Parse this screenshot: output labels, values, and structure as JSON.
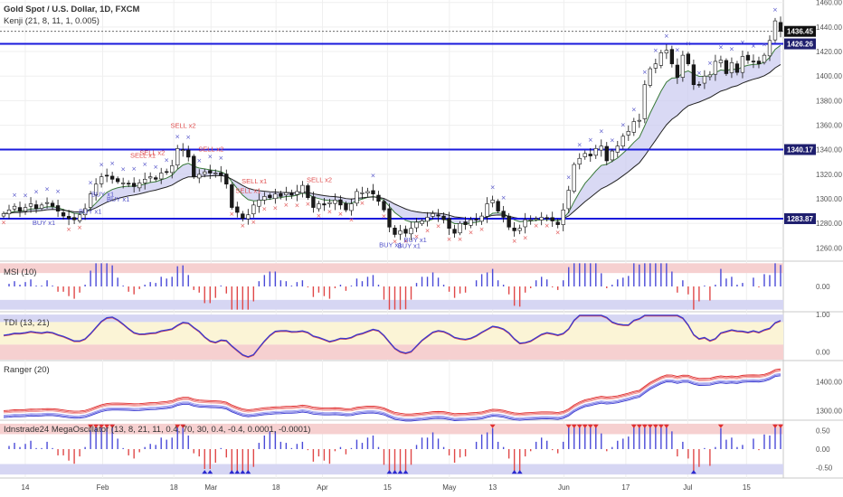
{
  "header": {
    "symbol_line": "Gold Spot / U.S. Dollar, 1D, FXCM",
    "indicator_line": "Kenji (21, 8, 11, 1, 0.005)"
  },
  "panes": {
    "msi_label": "MSI (10)",
    "tdi_label": "TDI (13, 21)",
    "ranger_label": "Ranger (20)",
    "mega_label": "Idnstrade24 MegaOscillator (13, 8, 21, 11, 0.4, 70, 30, 0.4, -0.4, 0.0001, -0.0001)"
  },
  "colors": {
    "level_line": "#1a1adc",
    "up_candle": "#ffffff",
    "down_candle": "#1a1a1a",
    "buy": "#5050c8",
    "sell": "#e05050",
    "band_fill": "#c9c9ef",
    "red_zone": "#f6d0d0",
    "blue_zone": "#d6d6f3",
    "tdi_yellow": "#fbf4d6"
  },
  "chart_data": [
    {
      "id": "price",
      "type": "candlestick",
      "title": "Gold Spot / U.S. Dollar, 1D, FXCM",
      "ylim": [
        1250,
        1462
      ],
      "y_ticks": [
        1260,
        1280,
        1300,
        1320,
        1340,
        1360,
        1380,
        1400,
        1420,
        1440,
        1460
      ],
      "x_tick_labels": [
        "14",
        "Feb",
        "18",
        "Mar",
        "18",
        "Apr",
        "15",
        "May",
        "13",
        "Jun",
        "17",
        "Jul",
        "15"
      ],
      "horizontal_levels": [
        {
          "value": 1426.26,
          "label": "1426.26"
        },
        {
          "value": 1340.17,
          "label": "1340.17"
        },
        {
          "value": 1283.87,
          "label": "1283.87"
        }
      ],
      "last_price": {
        "value": 1436.45,
        "label": "1436.45"
      },
      "close": [
        1288,
        1291,
        1294,
        1290,
        1293,
        1296,
        1292,
        1295,
        1297,
        1294,
        1290,
        1286,
        1284,
        1283,
        1287,
        1292,
        1304,
        1312,
        1318,
        1319,
        1316,
        1314,
        1313,
        1312,
        1310,
        1313,
        1316,
        1318,
        1316,
        1321,
        1322,
        1327,
        1341,
        1340,
        1334,
        1318,
        1320,
        1322,
        1321,
        1321,
        1319,
        1312,
        1293,
        1289,
        1284,
        1287,
        1295,
        1299,
        1302,
        1301,
        1304,
        1302,
        1305,
        1303,
        1306,
        1311,
        1301,
        1293,
        1296,
        1295,
        1297,
        1299,
        1295,
        1291,
        1296,
        1306,
        1305,
        1306,
        1304,
        1298,
        1291,
        1277,
        1271,
        1274,
        1272,
        1276,
        1281,
        1282,
        1285,
        1288,
        1286,
        1283,
        1276,
        1272,
        1280,
        1279,
        1283,
        1283,
        1286,
        1296,
        1299,
        1290,
        1285,
        1277,
        1274,
        1276,
        1283,
        1283,
        1284,
        1285,
        1284,
        1282,
        1279,
        1291,
        1307,
        1328,
        1333,
        1337,
        1335,
        1341,
        1343,
        1331,
        1339,
        1343,
        1351,
        1355,
        1363,
        1364,
        1393,
        1406,
        1410,
        1419,
        1421,
        1410,
        1399,
        1417,
        1410,
        1393,
        1393,
        1400,
        1401,
        1412,
        1413,
        1402,
        1411,
        1403,
        1416,
        1413,
        1412,
        1410,
        1417,
        1429,
        1445,
        1436.45
      ],
      "open_offset_note": "",
      "annotations": [
        {
          "index": 13,
          "text": "BUY x1",
          "kind": "buy"
        },
        {
          "index": 28,
          "text": "BUY x1",
          "kind": "buy"
        },
        {
          "index": 32,
          "text": "BUY x1",
          "kind": "buy"
        },
        {
          "index": 37,
          "text": "BUY x1",
          "kind": "buy"
        },
        {
          "index": 45,
          "text": "SELL x1",
          "kind": "sell"
        },
        {
          "index": 48,
          "text": "SELL x2",
          "kind": "sell"
        },
        {
          "index": 58,
          "text": "SELL x2",
          "kind": "sell"
        },
        {
          "index": 67,
          "text": "SELL x2",
          "kind": "sell"
        },
        {
          "index": 79,
          "text": "SELL x1",
          "kind": "sell"
        },
        {
          "index": 81,
          "text": "SELL x1",
          "kind": "sell"
        },
        {
          "index": 102,
          "text": "SELL x2",
          "kind": "sell"
        },
        {
          "index": 125,
          "text": "BUY x1",
          "kind": "buy"
        },
        {
          "index": 131,
          "text": "BUY x1",
          "kind": "buy"
        },
        {
          "index": 133,
          "text": "BUY x1",
          "kind": "buy"
        }
      ]
    },
    {
      "id": "msi",
      "type": "bar",
      "title": "MSI (10)",
      "ylim": [
        -1,
        1
      ],
      "y_ticks": [
        {
          "value": 0,
          "label": "0.00"
        }
      ]
    },
    {
      "id": "tdi",
      "type": "line",
      "title": "TDI (13, 21)",
      "ylim": [
        -0.2,
        1.05
      ],
      "y_ticks": [
        {
          "value": 1,
          "label": "1.00"
        },
        {
          "value": 0,
          "label": "0.00"
        }
      ]
    },
    {
      "id": "ranger",
      "type": "line",
      "title": "Ranger (20)",
      "ylim": [
        1270,
        1470
      ],
      "y_ticks": [
        {
          "value": 1400,
          "label": "1400.00"
        },
        {
          "value": 1300,
          "label": "1300.00"
        }
      ]
    },
    {
      "id": "mega",
      "type": "bar",
      "title": "Idnstrade24 MegaOscillator (13, 8, 21, 11, 0.4, 70, 30, 0.4, -0.4, 0.0001, -0.0001)",
      "ylim": [
        -0.75,
        0.75
      ],
      "y_ticks": [
        {
          "value": 0.5,
          "label": "0.50"
        },
        {
          "value": 0,
          "label": "0.00"
        },
        {
          "value": -0.5,
          "label": "-0.50"
        }
      ]
    }
  ]
}
